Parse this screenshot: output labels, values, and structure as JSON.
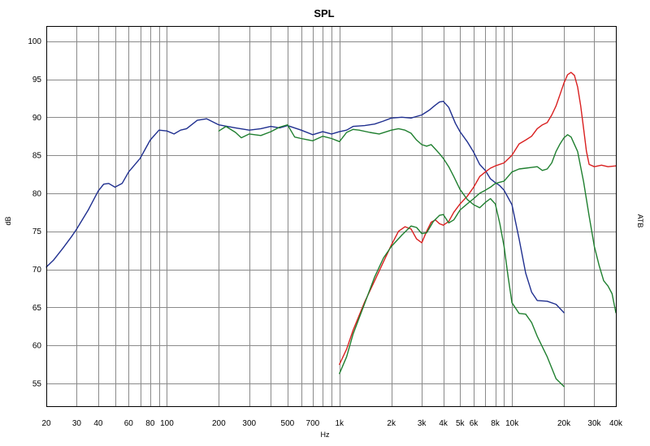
{
  "chart_data": {
    "type": "line",
    "title": "SPL",
    "xlabel": "Hz",
    "ylabel": "dB",
    "y2label": "ATB",
    "x_scale": "log",
    "xlim": [
      20,
      40000
    ],
    "ylim": [
      52,
      102
    ],
    "grid": true,
    "x_ticks": [
      20,
      30,
      40,
      50,
      60,
      70,
      80,
      90,
      100,
      200,
      300,
      400,
      500,
      600,
      700,
      800,
      900,
      1000,
      2000,
      3000,
      4000,
      5000,
      6000,
      7000,
      8000,
      9000,
      10000,
      20000,
      30000,
      40000
    ],
    "x_tick_labels": [
      {
        "value": 20,
        "label": "20"
      },
      {
        "value": 30,
        "label": "30"
      },
      {
        "value": 40,
        "label": "40"
      },
      {
        "value": 60,
        "label": "60"
      },
      {
        "value": 80,
        "label": "80"
      },
      {
        "value": 100,
        "label": "100"
      },
      {
        "value": 200,
        "label": "200"
      },
      {
        "value": 300,
        "label": "300"
      },
      {
        "value": 500,
        "label": "500"
      },
      {
        "value": 700,
        "label": "700"
      },
      {
        "value": 1000,
        "label": "1k"
      },
      {
        "value": 2000,
        "label": "2k"
      },
      {
        "value": 3000,
        "label": "3k"
      },
      {
        "value": 4000,
        "label": "4k"
      },
      {
        "value": 5000,
        "label": "5k"
      },
      {
        "value": 6000,
        "label": "6k"
      },
      {
        "value": 8000,
        "label": "8k"
      },
      {
        "value": 10000,
        "label": "10k"
      },
      {
        "value": 20000,
        "label": "20k"
      },
      {
        "value": 30000,
        "label": "30k"
      },
      {
        "value": 40000,
        "label": "40k"
      }
    ],
    "y_ticks": [
      55,
      60,
      65,
      70,
      75,
      80,
      85,
      90,
      95,
      100
    ],
    "series": [
      {
        "color": "#1f2f8f",
        "x": [
          20,
          22,
          25,
          28,
          30,
          35,
          40,
          43,
          46,
          50,
          55,
          60,
          70,
          80,
          90,
          100,
          110,
          120,
          130,
          150,
          170,
          200,
          250,
          300,
          350,
          400,
          450,
          500,
          600,
          700,
          800,
          900,
          1000,
          1100,
          1200,
          1400,
          1600,
          1800,
          2000,
          2300,
          2600,
          3000,
          3300,
          3600,
          3800,
          4000,
          4300,
          4700,
          5000,
          5500,
          6000,
          6500,
          7000,
          7500,
          8000,
          8500,
          9000,
          10000,
          11000,
          12000,
          13000,
          14000,
          16000,
          18000,
          20000
        ],
        "y": [
          70.3,
          71.2,
          72.8,
          74.3,
          75.3,
          77.8,
          80.3,
          81.2,
          81.3,
          80.8,
          81.3,
          82.8,
          84.6,
          87.0,
          88.3,
          88.2,
          87.8,
          88.3,
          88.5,
          89.6,
          89.8,
          89.0,
          88.6,
          88.3,
          88.5,
          88.8,
          88.6,
          88.9,
          88.3,
          87.7,
          88.1,
          87.8,
          88.1,
          88.3,
          88.8,
          88.9,
          89.1,
          89.5,
          89.9,
          90.0,
          89.9,
          90.3,
          90.9,
          91.6,
          92.0,
          92.1,
          91.3,
          89.2,
          88.1,
          86.8,
          85.4,
          83.8,
          83.0,
          81.9,
          81.4,
          81.0,
          80.4,
          78.5,
          74.0,
          69.5,
          67.0,
          65.9,
          65.8,
          65.4,
          64.3
        ]
      },
      {
        "color": "#d91f1f",
        "x": [
          1000,
          1100,
          1200,
          1400,
          1600,
          1800,
          2000,
          2200,
          2400,
          2600,
          2800,
          3000,
          3200,
          3400,
          3600,
          3800,
          4000,
          4300,
          4600,
          5000,
          5500,
          6000,
          6500,
          7000,
          7500,
          8000,
          9000,
          10000,
          11000,
          12000,
          13000,
          14000,
          15000,
          16000,
          17000,
          18000,
          19000,
          20000,
          21000,
          22000,
          23000,
          24000,
          25000,
          26000,
          27000,
          28000,
          30000,
          33000,
          36000,
          40000
        ],
        "y": [
          57.5,
          59.5,
          62.0,
          65.7,
          68.5,
          71.0,
          73.2,
          75.0,
          75.6,
          75.3,
          74.0,
          73.5,
          75.0,
          76.2,
          76.5,
          76.0,
          75.8,
          76.3,
          77.5,
          78.6,
          79.6,
          80.8,
          82.2,
          82.8,
          83.3,
          83.6,
          84.0,
          85.0,
          86.5,
          87.0,
          87.5,
          88.5,
          89.0,
          89.3,
          90.3,
          91.5,
          93.0,
          94.5,
          95.6,
          95.9,
          95.5,
          94.0,
          91.5,
          88.5,
          85.5,
          83.8,
          83.5,
          83.7,
          83.5,
          83.6
        ]
      },
      {
        "color": "#1f7f2f",
        "x": [
          200,
          220,
          250,
          270,
          300,
          350,
          400,
          450,
          500,
          550,
          600,
          700,
          800,
          900,
          1000,
          1100,
          1200,
          1300,
          1500,
          1700,
          2000,
          2200,
          2400,
          2600,
          2800,
          3000,
          3200,
          3400,
          3600,
          3800,
          4000,
          4300,
          4600,
          5000,
          5500,
          6000,
          6500,
          7000,
          7500,
          8000,
          8500,
          9000,
          9500,
          10000,
          11000,
          12000,
          13000,
          14000,
          16000,
          18000,
          20000
        ],
        "y": [
          88.2,
          88.8,
          88.0,
          87.3,
          87.8,
          87.6,
          88.1,
          88.7,
          89.0,
          87.4,
          87.2,
          86.9,
          87.5,
          87.2,
          86.8,
          88.0,
          88.4,
          88.3,
          88.0,
          87.8,
          88.3,
          88.5,
          88.3,
          87.9,
          87.0,
          86.4,
          86.2,
          86.4,
          85.8,
          85.2,
          84.6,
          83.5,
          82.2,
          80.5,
          79.2,
          78.5,
          78.1,
          78.8,
          79.3,
          78.6,
          76.0,
          73.0,
          69.0,
          65.6,
          64.2,
          64.1,
          63.0,
          61.2,
          58.5,
          55.6,
          54.6
        ]
      },
      {
        "color": "#1f7f2f",
        "x": [
          1000,
          1100,
          1200,
          1400,
          1600,
          1800,
          2000,
          2300,
          2600,
          2800,
          3000,
          3200,
          3500,
          3800,
          4000,
          4300,
          4600,
          5000,
          5500,
          6000,
          6500,
          7000,
          7500,
          8000,
          9000,
          10000,
          11000,
          12000,
          13000,
          14000,
          15000,
          16000,
          17000,
          18000,
          19000,
          20000,
          21000,
          22000,
          24000,
          26000,
          28000,
          30000,
          32000,
          34000,
          36000,
          38000,
          40000
        ],
        "y": [
          56.3,
          58.5,
          61.5,
          65.5,
          69.0,
          71.5,
          73.0,
          74.5,
          75.7,
          75.5,
          74.7,
          74.8,
          76.3,
          77.1,
          77.2,
          76.1,
          76.5,
          77.8,
          78.6,
          79.3,
          80.0,
          80.4,
          80.8,
          81.3,
          81.6,
          82.8,
          83.2,
          83.3,
          83.4,
          83.5,
          83.0,
          83.2,
          84.0,
          85.5,
          86.5,
          87.3,
          87.7,
          87.4,
          85.5,
          81.5,
          77.0,
          73.0,
          70.5,
          68.5,
          67.8,
          66.8,
          64.3
        ]
      }
    ]
  }
}
